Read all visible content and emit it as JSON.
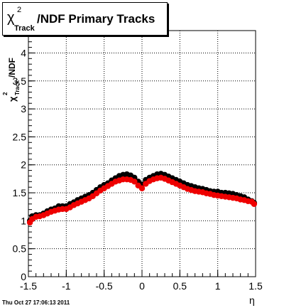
{
  "chart_data": {
    "type": "scatter",
    "title": {
      "chi": "χ",
      "sup": "2",
      "sub": "Track",
      "rest": "/NDF  Primary Tracks"
    },
    "ylabel": {
      "chi": "χ",
      "sup": "2",
      "sub": "Track",
      "rest": "/NDF"
    },
    "xlabel": "η",
    "xlim": [
      -1.5,
      1.5
    ],
    "ylim": [
      0,
      4.4
    ],
    "grid": true,
    "x_ticks": [
      "-1.5",
      "-1",
      "-0.5",
      "0",
      "0.5",
      "1",
      "1.5"
    ],
    "y_ticks": [
      "0",
      "0.5",
      "1",
      "1.5",
      "2",
      "2.5",
      "3",
      "3.5",
      "4"
    ],
    "x_tick_values": [
      -1.5,
      -1,
      -0.5,
      0,
      0.5,
      1,
      1.5
    ],
    "y_tick_values": [
      0,
      0.5,
      1,
      1.5,
      2,
      2.5,
      3,
      3.5,
      4
    ],
    "series": [
      {
        "color": "#000000",
        "points": [
          [
            -1.48,
            1.0
          ],
          [
            -1.45,
            1.08
          ],
          [
            -1.4,
            1.1
          ],
          [
            -1.35,
            1.1
          ],
          [
            -1.3,
            1.13
          ],
          [
            -1.25,
            1.17
          ],
          [
            -1.2,
            1.2
          ],
          [
            -1.15,
            1.22
          ],
          [
            -1.1,
            1.26
          ],
          [
            -1.05,
            1.26
          ],
          [
            -1.0,
            1.26
          ],
          [
            -0.95,
            1.3
          ],
          [
            -0.9,
            1.33
          ],
          [
            -0.85,
            1.37
          ],
          [
            -0.8,
            1.4
          ],
          [
            -0.75,
            1.43
          ],
          [
            -0.7,
            1.46
          ],
          [
            -0.65,
            1.5
          ],
          [
            -0.6,
            1.55
          ],
          [
            -0.55,
            1.6
          ],
          [
            -0.5,
            1.64
          ],
          [
            -0.45,
            1.67
          ],
          [
            -0.4,
            1.72
          ],
          [
            -0.35,
            1.76
          ],
          [
            -0.3,
            1.8
          ],
          [
            -0.25,
            1.82
          ],
          [
            -0.2,
            1.83
          ],
          [
            -0.15,
            1.81
          ],
          [
            -0.1,
            1.77
          ],
          [
            -0.05,
            1.7
          ],
          [
            0.0,
            1.65
          ],
          [
            0.05,
            1.73
          ],
          [
            0.1,
            1.77
          ],
          [
            0.15,
            1.8
          ],
          [
            0.2,
            1.83
          ],
          [
            0.25,
            1.84
          ],
          [
            0.3,
            1.82
          ],
          [
            0.35,
            1.79
          ],
          [
            0.4,
            1.76
          ],
          [
            0.45,
            1.73
          ],
          [
            0.5,
            1.7
          ],
          [
            0.55,
            1.67
          ],
          [
            0.6,
            1.64
          ],
          [
            0.65,
            1.62
          ],
          [
            0.7,
            1.6
          ],
          [
            0.75,
            1.58
          ],
          [
            0.8,
            1.57
          ],
          [
            0.85,
            1.55
          ],
          [
            0.9,
            1.53
          ],
          [
            0.95,
            1.52
          ],
          [
            1.0,
            1.52
          ],
          [
            1.05,
            1.5
          ],
          [
            1.1,
            1.5
          ],
          [
            1.15,
            1.49
          ],
          [
            1.2,
            1.48
          ],
          [
            1.25,
            1.46
          ],
          [
            1.3,
            1.44
          ],
          [
            1.35,
            1.42
          ],
          [
            1.4,
            1.38
          ],
          [
            1.45,
            1.35
          ],
          [
            1.48,
            1.32
          ]
        ]
      },
      {
        "color": "#ee0000",
        "points": [
          [
            -1.48,
            0.97
          ],
          [
            -1.45,
            1.03
          ],
          [
            -1.4,
            1.07
          ],
          [
            -1.35,
            1.08
          ],
          [
            -1.3,
            1.1
          ],
          [
            -1.25,
            1.13
          ],
          [
            -1.2,
            1.16
          ],
          [
            -1.15,
            1.18
          ],
          [
            -1.1,
            1.2
          ],
          [
            -1.05,
            1.21
          ],
          [
            -1.0,
            1.21
          ],
          [
            -0.95,
            1.24
          ],
          [
            -0.9,
            1.28
          ],
          [
            -0.85,
            1.31
          ],
          [
            -0.8,
            1.34
          ],
          [
            -0.75,
            1.37
          ],
          [
            -0.7,
            1.4
          ],
          [
            -0.65,
            1.44
          ],
          [
            -0.6,
            1.49
          ],
          [
            -0.55,
            1.54
          ],
          [
            -0.5,
            1.58
          ],
          [
            -0.45,
            1.62
          ],
          [
            -0.4,
            1.66
          ],
          [
            -0.35,
            1.7
          ],
          [
            -0.3,
            1.72
          ],
          [
            -0.25,
            1.74
          ],
          [
            -0.2,
            1.74
          ],
          [
            -0.15,
            1.73
          ],
          [
            -0.1,
            1.7
          ],
          [
            -0.05,
            1.63
          ],
          [
            0.0,
            1.58
          ],
          [
            0.05,
            1.66
          ],
          [
            0.1,
            1.71
          ],
          [
            0.15,
            1.74
          ],
          [
            0.2,
            1.76
          ],
          [
            0.25,
            1.77
          ],
          [
            0.3,
            1.75
          ],
          [
            0.35,
            1.72
          ],
          [
            0.4,
            1.69
          ],
          [
            0.45,
            1.66
          ],
          [
            0.5,
            1.63
          ],
          [
            0.55,
            1.6
          ],
          [
            0.6,
            1.57
          ],
          [
            0.65,
            1.55
          ],
          [
            0.7,
            1.53
          ],
          [
            0.75,
            1.52
          ],
          [
            0.8,
            1.51
          ],
          [
            0.85,
            1.49
          ],
          [
            0.9,
            1.48
          ],
          [
            0.95,
            1.46
          ],
          [
            1.0,
            1.45
          ],
          [
            1.05,
            1.44
          ],
          [
            1.1,
            1.43
          ],
          [
            1.15,
            1.42
          ],
          [
            1.2,
            1.41
          ],
          [
            1.25,
            1.4
          ],
          [
            1.3,
            1.38
          ],
          [
            1.35,
            1.37
          ],
          [
            1.4,
            1.35
          ],
          [
            1.45,
            1.34
          ],
          [
            1.48,
            1.3
          ]
        ]
      }
    ]
  },
  "footer": {
    "timestamp": "Thu Oct 27 17:06:13 2011"
  }
}
